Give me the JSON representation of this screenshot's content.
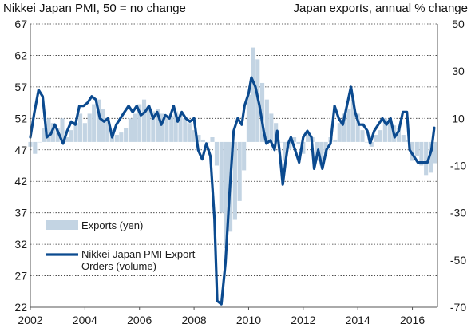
{
  "header": {
    "left_title": "Nikkei Japan PMI, 50 = no change",
    "right_title": "Japan exports, annual % change"
  },
  "chart_data": {
    "type": "bar+line (dual axis)",
    "title_left": "Nikkei Japan PMI, 50 = no change",
    "title_right": "Japan exports, annual % change",
    "x_ticks": [
      "2002",
      "2004",
      "2006",
      "2008",
      "2010",
      "2012",
      "2014",
      "2016"
    ],
    "x_range": [
      2002.0,
      2016.92
    ],
    "y_left": {
      "ticks": [
        67,
        62,
        57,
        52,
        47,
        42,
        37,
        32,
        27,
        22
      ],
      "range": [
        22,
        67
      ],
      "reference_line": 50
    },
    "y_right": {
      "ticks": [
        50,
        30,
        10,
        -10,
        -30,
        -50,
        -70
      ],
      "range": [
        -70,
        50
      ]
    },
    "grid": "dotted horizontal lines at left-axis ticks",
    "legend_position": "lower-left",
    "colors": {
      "exports_bars": "#c3d4e3",
      "pmi_line": "#0b4a8f",
      "grid": "#333333"
    },
    "series": [
      {
        "name": "Exports (yen)",
        "type": "bar",
        "axis": "right",
        "points": [
          [
            2002.0,
            -2
          ],
          [
            2002.17,
            -5
          ],
          [
            2002.33,
            0
          ],
          [
            2002.5,
            6
          ],
          [
            2002.67,
            10
          ],
          [
            2002.83,
            8
          ],
          [
            2003.0,
            6
          ],
          [
            2003.17,
            10
          ],
          [
            2003.33,
            2
          ],
          [
            2003.5,
            5
          ],
          [
            2003.67,
            8
          ],
          [
            2003.83,
            12
          ],
          [
            2004.0,
            8
          ],
          [
            2004.17,
            12
          ],
          [
            2004.33,
            16
          ],
          [
            2004.5,
            18
          ],
          [
            2004.67,
            14
          ],
          [
            2004.83,
            10
          ],
          [
            2005.0,
            5
          ],
          [
            2005.17,
            3
          ],
          [
            2005.33,
            4
          ],
          [
            2005.5,
            6
          ],
          [
            2005.67,
            10
          ],
          [
            2005.83,
            12
          ],
          [
            2006.0,
            16
          ],
          [
            2006.17,
            18
          ],
          [
            2006.33,
            15
          ],
          [
            2006.5,
            13
          ],
          [
            2006.67,
            14
          ],
          [
            2006.83,
            12
          ],
          [
            2007.0,
            10
          ],
          [
            2007.17,
            11
          ],
          [
            2007.33,
            13
          ],
          [
            2007.5,
            12
          ],
          [
            2007.67,
            10
          ],
          [
            2007.83,
            8
          ],
          [
            2008.0,
            5
          ],
          [
            2008.17,
            3
          ],
          [
            2008.33,
            1
          ],
          [
            2008.5,
            0
          ],
          [
            2008.67,
            2
          ],
          [
            2008.83,
            -10
          ],
          [
            2009.0,
            -30
          ],
          [
            2009.17,
            -45
          ],
          [
            2009.33,
            -38
          ],
          [
            2009.5,
            -33
          ],
          [
            2009.67,
            -25
          ],
          [
            2009.83,
            -12
          ],
          [
            2010.0,
            20
          ],
          [
            2010.17,
            40
          ],
          [
            2010.33,
            35
          ],
          [
            2010.5,
            25
          ],
          [
            2010.67,
            18
          ],
          [
            2010.83,
            12
          ],
          [
            2011.0,
            8
          ],
          [
            2011.17,
            0
          ],
          [
            2011.33,
            -8
          ],
          [
            2011.5,
            -3
          ],
          [
            2011.67,
            2
          ],
          [
            2011.83,
            -1
          ],
          [
            2012.0,
            -5
          ],
          [
            2012.17,
            3
          ],
          [
            2012.33,
            2
          ],
          [
            2012.5,
            -8
          ],
          [
            2012.67,
            -10
          ],
          [
            2012.83,
            -5
          ],
          [
            2013.0,
            2
          ],
          [
            2013.17,
            1
          ],
          [
            2013.33,
            8
          ],
          [
            2013.5,
            12
          ],
          [
            2013.67,
            14
          ],
          [
            2013.83,
            18
          ],
          [
            2014.0,
            12
          ],
          [
            2014.17,
            5
          ],
          [
            2014.33,
            0
          ],
          [
            2014.5,
            -2
          ],
          [
            2014.67,
            3
          ],
          [
            2014.83,
            5
          ],
          [
            2015.0,
            10
          ],
          [
            2015.17,
            9
          ],
          [
            2015.33,
            7
          ],
          [
            2015.5,
            6
          ],
          [
            2015.67,
            3
          ],
          [
            2015.83,
            1
          ],
          [
            2016.0,
            -8
          ],
          [
            2016.17,
            -6
          ],
          [
            2016.33,
            -10
          ],
          [
            2016.5,
            -14
          ],
          [
            2016.67,
            -13
          ],
          [
            2016.83,
            -9
          ]
        ]
      },
      {
        "name": "Nikkei Japan PMI Export Orders (volume)",
        "type": "line",
        "axis": "left",
        "points": [
          [
            2002.0,
            49
          ],
          [
            2002.15,
            53
          ],
          [
            2002.3,
            56.5
          ],
          [
            2002.45,
            55.5
          ],
          [
            2002.6,
            49
          ],
          [
            2002.75,
            49.5
          ],
          [
            2002.9,
            51
          ],
          [
            2003.05,
            49.5
          ],
          [
            2003.2,
            48
          ],
          [
            2003.35,
            50
          ],
          [
            2003.5,
            51.5
          ],
          [
            2003.65,
            51
          ],
          [
            2003.8,
            54
          ],
          [
            2003.95,
            54
          ],
          [
            2004.1,
            54.5
          ],
          [
            2004.25,
            55.5
          ],
          [
            2004.4,
            55
          ],
          [
            2004.55,
            52
          ],
          [
            2004.7,
            51.5
          ],
          [
            2004.85,
            52
          ],
          [
            2005.0,
            49
          ],
          [
            2005.15,
            51
          ],
          [
            2005.3,
            52
          ],
          [
            2005.45,
            53
          ],
          [
            2005.6,
            54
          ],
          [
            2005.75,
            53
          ],
          [
            2005.9,
            54
          ],
          [
            2006.05,
            52.5
          ],
          [
            2006.2,
            53
          ],
          [
            2006.35,
            54
          ],
          [
            2006.5,
            52
          ],
          [
            2006.65,
            53
          ],
          [
            2006.8,
            51
          ],
          [
            2006.95,
            52.5
          ],
          [
            2007.1,
            52
          ],
          [
            2007.25,
            54
          ],
          [
            2007.4,
            51.5
          ],
          [
            2007.55,
            53
          ],
          [
            2007.7,
            52
          ],
          [
            2007.85,
            51.5
          ],
          [
            2008.0,
            52
          ],
          [
            2008.15,
            47
          ],
          [
            2008.3,
            45.5
          ],
          [
            2008.45,
            48
          ],
          [
            2008.6,
            46
          ],
          [
            2008.75,
            36
          ],
          [
            2008.85,
            23
          ],
          [
            2009.0,
            22.5
          ],
          [
            2009.15,
            29
          ],
          [
            2009.3,
            40
          ],
          [
            2009.45,
            50
          ],
          [
            2009.6,
            52
          ],
          [
            2009.75,
            51
          ],
          [
            2009.85,
            54
          ],
          [
            2010.0,
            56
          ],
          [
            2010.1,
            58.5
          ],
          [
            2010.25,
            57
          ],
          [
            2010.4,
            54
          ],
          [
            2010.55,
            50
          ],
          [
            2010.65,
            48
          ],
          [
            2010.8,
            48.5
          ],
          [
            2010.95,
            47
          ],
          [
            2011.05,
            50
          ],
          [
            2011.15,
            46
          ],
          [
            2011.25,
            41.5
          ],
          [
            2011.35,
            45
          ],
          [
            2011.45,
            48
          ],
          [
            2011.55,
            49
          ],
          [
            2011.7,
            47
          ],
          [
            2011.85,
            45
          ],
          [
            2012.0,
            49
          ],
          [
            2012.15,
            50
          ],
          [
            2012.3,
            49
          ],
          [
            2012.4,
            44
          ],
          [
            2012.55,
            47
          ],
          [
            2012.7,
            44
          ],
          [
            2012.85,
            47
          ],
          [
            2013.0,
            48
          ],
          [
            2013.15,
            54
          ],
          [
            2013.3,
            52
          ],
          [
            2013.45,
            51
          ],
          [
            2013.6,
            54
          ],
          [
            2013.75,
            57
          ],
          [
            2013.9,
            53
          ],
          [
            2014.05,
            51
          ],
          [
            2014.2,
            51
          ],
          [
            2014.35,
            50
          ],
          [
            2014.45,
            48
          ],
          [
            2014.6,
            50
          ],
          [
            2014.75,
            51
          ],
          [
            2014.9,
            52
          ],
          [
            2015.05,
            51
          ],
          [
            2015.2,
            52
          ],
          [
            2015.35,
            49
          ],
          [
            2015.5,
            50
          ],
          [
            2015.65,
            53
          ],
          [
            2015.8,
            53
          ],
          [
            2015.9,
            47
          ],
          [
            2016.05,
            46
          ],
          [
            2016.2,
            45
          ],
          [
            2016.4,
            45
          ],
          [
            2016.55,
            45
          ],
          [
            2016.7,
            47
          ],
          [
            2016.8,
            50.5
          ]
        ]
      }
    ]
  }
}
